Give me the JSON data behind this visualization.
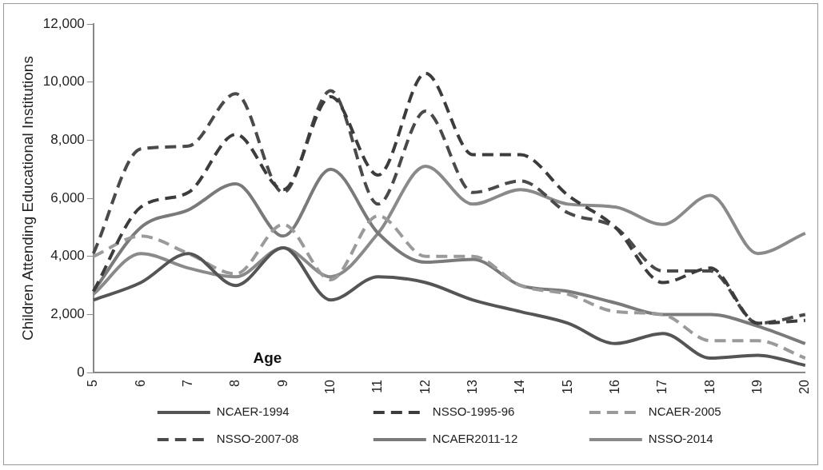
{
  "chart_data": {
    "type": "line",
    "ylabel": "Children Attending Educational Institutions",
    "xlabel": "Age",
    "categories": [
      "5",
      "6",
      "7",
      "8",
      "9",
      "10",
      "11",
      "12",
      "13",
      "14",
      "15",
      "16",
      "17",
      "18",
      "19",
      "20"
    ],
    "ylim": [
      0,
      12000
    ],
    "yticks": [
      {
        "value": 0,
        "label": "0"
      },
      {
        "value": 2000,
        "label": "2,000"
      },
      {
        "value": 4000,
        "label": "4,000"
      },
      {
        "value": 6000,
        "label": "6,000"
      },
      {
        "value": 8000,
        "label": "8,000"
      },
      {
        "value": 10000,
        "label": "10,000"
      },
      {
        "value": 12000,
        "label": "12,000"
      }
    ],
    "grid": false,
    "legend": "bottom",
    "marker": "none",
    "series": [
      {
        "name": "NCAER-1994",
        "color": "#555555",
        "line_style": "solid",
        "values": [
          2500,
          3100,
          4100,
          3000,
          4300,
          2500,
          3300,
          3100,
          2500,
          2100,
          1700,
          1000,
          1350,
          500,
          600,
          250
        ]
      },
      {
        "name": "NSSO-1995-96",
        "color": "#3c3c3c",
        "line_style": "dashed",
        "values": [
          2800,
          5700,
          6200,
          8200,
          6300,
          9500,
          6800,
          10300,
          7500,
          7500,
          6100,
          5000,
          3100,
          3600,
          1700,
          1800
        ]
      },
      {
        "name": "NCAER-2005",
        "color": "#9a9a9a",
        "line_style": "dashed",
        "values": [
          4000,
          4700,
          4100,
          3400,
          5100,
          3200,
          5400,
          4000,
          4000,
          3000,
          2700,
          2100,
          2000,
          1100,
          1100,
          500
        ]
      },
      {
        "name": "NSSO-2007-08",
        "color": "#4a4a4a",
        "line_style": "dashed",
        "values": [
          4100,
          7700,
          7800,
          9600,
          6200,
          9700,
          5800,
          9000,
          6200,
          6600,
          5500,
          5000,
          3500,
          3500,
          1700,
          2000
        ]
      },
      {
        "name": "NCAER2011-12",
        "color": "#7a7a7a",
        "line_style": "solid",
        "values": [
          2800,
          5000,
          5600,
          6500,
          4700,
          7000,
          4800,
          3800,
          3900,
          3000,
          2800,
          2400,
          2000,
          2000,
          1600,
          1000
        ]
      },
      {
        "name": "NSSO-2014",
        "color": "#8a8a8a",
        "line_style": "solid",
        "values": [
          2700,
          4100,
          3600,
          3300,
          4300,
          3300,
          4800,
          7100,
          5800,
          6300,
          5800,
          5700,
          5100,
          6100,
          4100,
          4800
        ]
      }
    ]
  }
}
